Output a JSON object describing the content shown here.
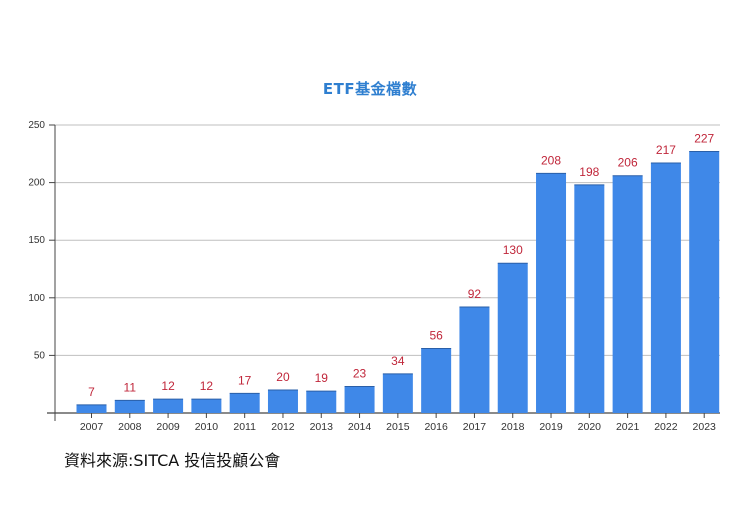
{
  "chart_data": {
    "type": "bar",
    "title": "ETF基金檔數",
    "xlabel": "",
    "ylabel": "",
    "categories": [
      "2007",
      "2008",
      "2009",
      "2010",
      "2011",
      "2012",
      "2013",
      "2014",
      "2015",
      "2016",
      "2017",
      "2018",
      "2019",
      "2020",
      "2021",
      "2022",
      "2023"
    ],
    "values": [
      7,
      11,
      12,
      12,
      17,
      20,
      19,
      23,
      34,
      56,
      92,
      130,
      208,
      198,
      206,
      217,
      227
    ],
    "ylim": [
      0,
      250
    ],
    "yticks": [
      50,
      100,
      150,
      200,
      250
    ],
    "grid": true,
    "legend": null,
    "data_labels": true
  },
  "colors": {
    "bar": "#3f88e8",
    "bar_cap": "#2a5fa8",
    "label": "#c0263a",
    "title": "#2f7fd0",
    "grid": "#bfbfbf",
    "axis": "#444444"
  },
  "footer": {
    "source": "資料來源:SITCA 投信投顧公會"
  }
}
